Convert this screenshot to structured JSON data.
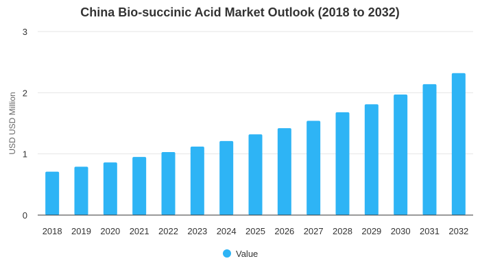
{
  "chart_data": {
    "type": "bar",
    "title": "China Bio-succinic Acid Market Outlook (2018 to 2032)",
    "xlabel": "",
    "ylabel": "USD USD Million",
    "categories": [
      "2018",
      "2019",
      "2020",
      "2021",
      "2022",
      "2023",
      "2024",
      "2025",
      "2026",
      "2027",
      "2028",
      "2029",
      "2030",
      "2031",
      "2032"
    ],
    "series": [
      {
        "name": "Value",
        "values": [
          0.71,
          0.79,
          0.86,
          0.95,
          1.03,
          1.12,
          1.21,
          1.32,
          1.42,
          1.54,
          1.68,
          1.81,
          1.97,
          2.14,
          2.32
        ]
      }
    ],
    "ylim": [
      0,
      3
    ],
    "yticks": [
      "0",
      "1",
      "2",
      "3"
    ],
    "grid": true,
    "legend": "bottom",
    "colors": {
      "bar": "#2eb4f5",
      "grid": "#e6e6e6",
      "axis": "#333333"
    }
  }
}
